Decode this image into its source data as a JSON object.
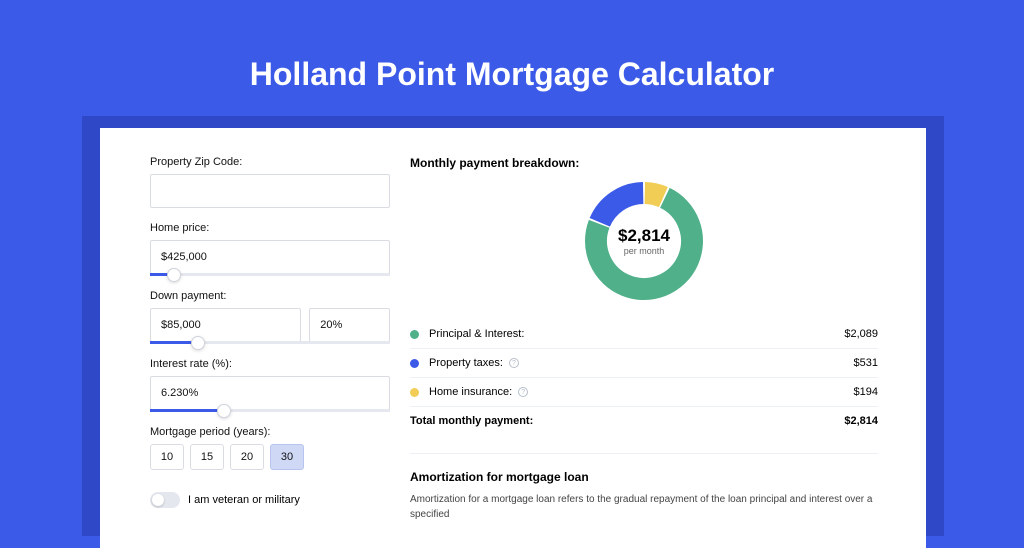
{
  "title": "Holland Point Mortgage Calculator",
  "colors": {
    "page_bg": "#3c5ae8",
    "shadow_panel": "#2f48c8",
    "principal": "#4fb08a",
    "taxes": "#3c5ae8",
    "insurance": "#f1cd56"
  },
  "form": {
    "zip_label": "Property Zip Code:",
    "zip_value": "",
    "home_price_label": "Home price:",
    "home_price_value": "$425,000",
    "home_price_slider_pct": 10,
    "down_payment_label": "Down payment:",
    "down_payment_value": "$85,000",
    "down_payment_pct_value": "20%",
    "down_payment_slider_pct": 20,
    "interest_label": "Interest rate (%):",
    "interest_value": "6.230%",
    "interest_slider_pct": 31,
    "period_label": "Mortgage period (years):",
    "periods": [
      "10",
      "15",
      "20",
      "30"
    ],
    "period_selected": "30",
    "veteran_label": "I am veteran or military"
  },
  "breakdown": {
    "title": "Monthly payment breakdown:",
    "total_display": "$2,814",
    "total_sub": "per month",
    "items": [
      {
        "label": "Principal & Interest:",
        "value": "$2,089",
        "color": "#4fb08a",
        "pct": 74.2
      },
      {
        "label": "Property taxes:",
        "value": "$531",
        "color": "#3c5ae8",
        "pct": 18.9,
        "info": true
      },
      {
        "label": "Home insurance:",
        "value": "$194",
        "color": "#f1cd56",
        "pct": 6.9,
        "info": true
      }
    ],
    "total_label": "Total monthly payment:",
    "total_value": "$2,814"
  },
  "donut": {
    "gap_deg": 2,
    "stroke_width": 22
  },
  "amortization": {
    "title": "Amortization for mortgage loan",
    "body": "Amortization for a mortgage loan refers to the gradual repayment of the loan principal and interest over a specified"
  }
}
